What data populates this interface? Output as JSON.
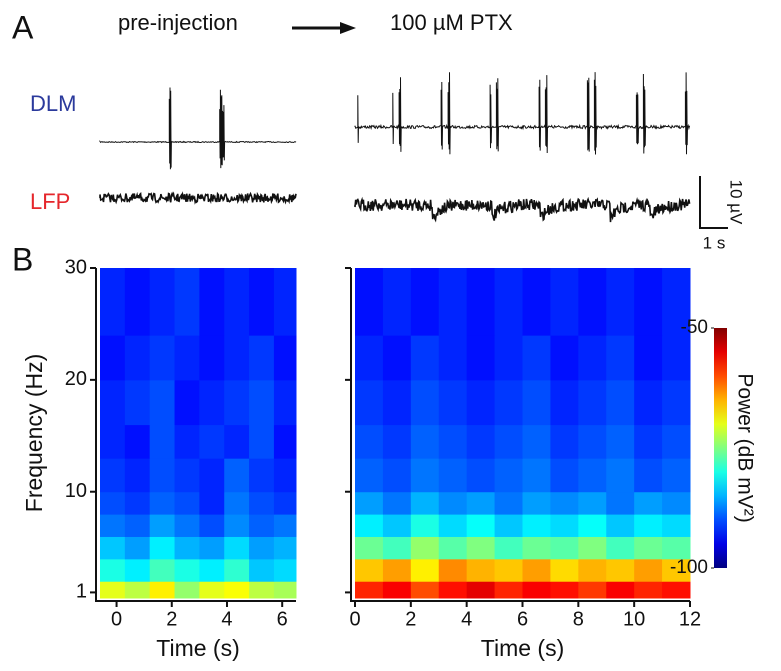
{
  "panel_a": {
    "label": "A",
    "pre_label": "pre-injection",
    "post_label": "100 µM PTX",
    "dlm_label": "DLM",
    "lfp_label": "LFP",
    "scale_v": "10 µV",
    "scale_t": "1 s"
  },
  "panel_b": {
    "label": "B"
  },
  "chart_data": [
    {
      "type": "heatmap",
      "ylabel": "Frequency (Hz)",
      "xlabel": "Time (s)",
      "xlim": [
        -0.6,
        6.5
      ],
      "xticks": [
        0,
        2,
        4,
        6
      ],
      "ylim": [
        0.5,
        30
      ],
      "yticks": [
        1,
        10,
        20,
        30
      ],
      "xbins": [
        -0.6,
        0.3,
        1.2,
        2.1,
        3.0,
        3.9,
        4.8,
        5.7,
        6.5
      ],
      "ybins": [
        0.5,
        2,
        4,
        6,
        8,
        10,
        13,
        16,
        20,
        24,
        30
      ],
      "z": [
        [
          -70,
          -72,
          -68,
          -74,
          -70,
          -69,
          -72,
          -73
        ],
        [
          -80,
          -82,
          -78,
          -80,
          -82,
          -79,
          -84,
          -83
        ],
        [
          -84,
          -86,
          -82,
          -85,
          -86,
          -83,
          -86,
          -85
        ],
        [
          -88,
          -89,
          -86,
          -88,
          -90,
          -87,
          -89,
          -88
        ],
        [
          -90,
          -91,
          -89,
          -90,
          -92,
          -88,
          -90,
          -91
        ],
        [
          -91,
          -92,
          -90,
          -91,
          -92,
          -89,
          -91,
          -92
        ],
        [
          -92,
          -93,
          -90,
          -92,
          -91,
          -92,
          -90,
          -93
        ],
        [
          -92,
          -91,
          -90,
          -93,
          -92,
          -91,
          -90,
          -92
        ],
        [
          -93,
          -92,
          -91,
          -92,
          -93,
          -92,
          -91,
          -93
        ],
        [
          -92,
          -93,
          -92,
          -91,
          -93,
          -92,
          -93,
          -92
        ]
      ]
    },
    {
      "type": "heatmap",
      "xlabel": "Time (s)",
      "xlim": [
        0,
        12
      ],
      "xticks": [
        0,
        2,
        4,
        6,
        8,
        10,
        12
      ],
      "ylim": [
        0.5,
        30
      ],
      "yticks": [
        1,
        10,
        20,
        30
      ],
      "xbins": [
        0,
        1,
        2,
        3,
        4,
        5,
        6,
        7,
        8,
        9,
        10,
        11,
        12
      ],
      "ybins": [
        0.5,
        2,
        4,
        6,
        8,
        10,
        13,
        16,
        20,
        24,
        30
      ],
      "z": [
        [
          -58,
          -56,
          -60,
          -57,
          -55,
          -58,
          -56,
          -57,
          -59,
          -56,
          -58,
          -57
        ],
        [
          -66,
          -64,
          -68,
          -63,
          -65,
          -66,
          -64,
          -67,
          -65,
          -66,
          -64,
          -66
        ],
        [
          -76,
          -78,
          -74,
          -77,
          -75,
          -78,
          -76,
          -77,
          -75,
          -78,
          -76,
          -77
        ],
        [
          -82,
          -84,
          -80,
          -83,
          -81,
          -84,
          -82,
          -83,
          -81,
          -84,
          -82,
          -83
        ],
        [
          -86,
          -88,
          -85,
          -87,
          -86,
          -88,
          -86,
          -87,
          -86,
          -88,
          -86,
          -87
        ],
        [
          -89,
          -90,
          -88,
          -89,
          -90,
          -89,
          -88,
          -90,
          -89,
          -88,
          -90,
          -89
        ],
        [
          -90,
          -91,
          -89,
          -90,
          -91,
          -90,
          -89,
          -91,
          -90,
          -89,
          -91,
          -90
        ],
        [
          -91,
          -92,
          -90,
          -91,
          -92,
          -91,
          -90,
          -92,
          -91,
          -90,
          -92,
          -91
        ],
        [
          -92,
          -93,
          -91,
          -92,
          -93,
          -92,
          -91,
          -93,
          -92,
          -91,
          -93,
          -92
        ],
        [
          -93,
          -92,
          -93,
          -92,
          -93,
          -92,
          -93,
          -92,
          -93,
          -92,
          -93,
          -92
        ]
      ]
    }
  ],
  "colorbar": {
    "label": "Power (dB mV²)",
    "clim": [
      -100,
      -50
    ],
    "ticks": [
      -50,
      -100
    ],
    "colormap": "jet"
  }
}
